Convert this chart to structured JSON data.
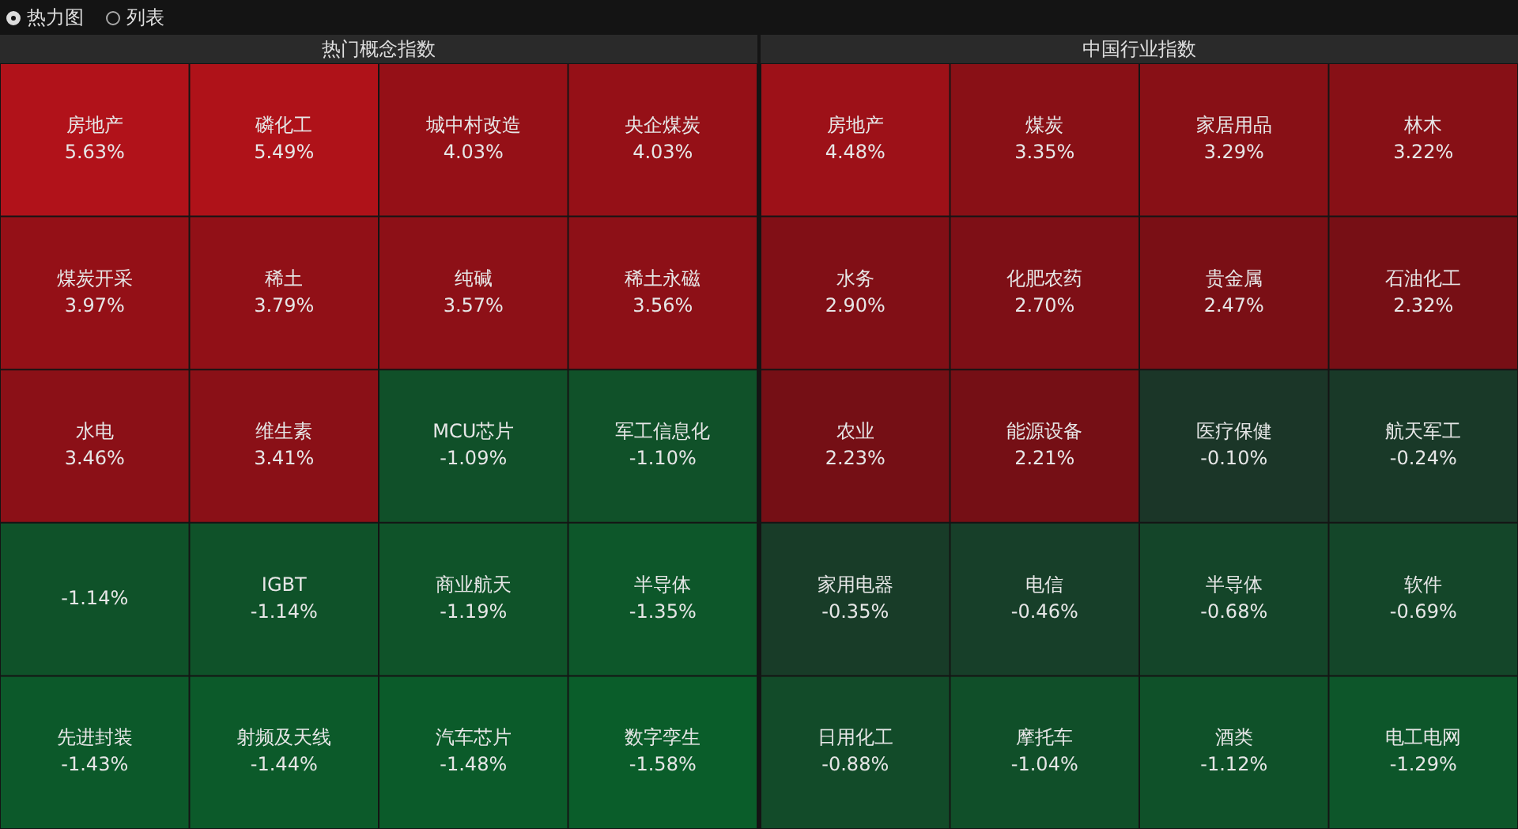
{
  "chart_data": [
    {
      "type": "other",
      "title": "热门概念指数",
      "annotations": [
        "热力图",
        "列表"
      ],
      "categories": [
        "房地产",
        "磷化工",
        "城中村改造",
        "央企煤炭",
        "煤炭开采",
        "稀土",
        "纯碱",
        "稀土永磁",
        "水电",
        "维生素",
        "MCU芯片",
        "军工信息化",
        null,
        "IGBT",
        "商业航天",
        "半导体",
        "先进封装",
        "射频及天线",
        "汽车芯片",
        "数字孪生"
      ],
      "values": [
        5.63,
        5.49,
        4.03,
        4.03,
        3.97,
        3.79,
        3.57,
        3.56,
        3.46,
        3.41,
        -1.09,
        -1.1,
        -1.14,
        -1.14,
        -1.19,
        -1.35,
        -1.43,
        -1.44,
        -1.48,
        -1.58
      ],
      "value_labels": [
        "5.63%",
        "5.49%",
        "4.03%",
        "4.03%",
        "3.97%",
        "3.79%",
        "3.57%",
        "3.56%",
        "3.46%",
        "3.41%",
        "-1.09%",
        "-1.10%",
        "-1.14%",
        "-1.14%",
        "-1.19%",
        "-1.35%",
        "-1.43%",
        "-1.44%",
        "-1.48%",
        "-1.58%"
      ]
    },
    {
      "type": "other",
      "title": "中国行业指数",
      "categories": [
        "房地产",
        "煤炭",
        "家居用品",
        "林木",
        "水务",
        "化肥农药",
        "贵金属",
        "石油化工",
        "农业",
        "能源设备",
        "医疗保健",
        "航天军工",
        "家用电器",
        "电信",
        "半导体",
        "软件",
        "日用化工",
        "摩托车",
        "酒类",
        "电工电网"
      ],
      "values": [
        4.48,
        3.35,
        3.29,
        3.22,
        2.9,
        2.7,
        2.47,
        2.32,
        2.23,
        2.21,
        -0.1,
        -0.24,
        -0.35,
        -0.46,
        -0.68,
        -0.69,
        -0.88,
        -1.04,
        -1.12,
        -1.29
      ],
      "value_labels": [
        "4.48%",
        "3.35%",
        "3.29%",
        "3.22%",
        "2.90%",
        "2.70%",
        "2.47%",
        "2.32%",
        "2.23%",
        "2.21%",
        "-0.10%",
        "-0.24%",
        "-0.35%",
        "-0.46%",
        "-0.68%",
        "-0.69%",
        "-0.88%",
        "-1.04%",
        "-1.12%",
        "-1.29%"
      ]
    }
  ]
}
